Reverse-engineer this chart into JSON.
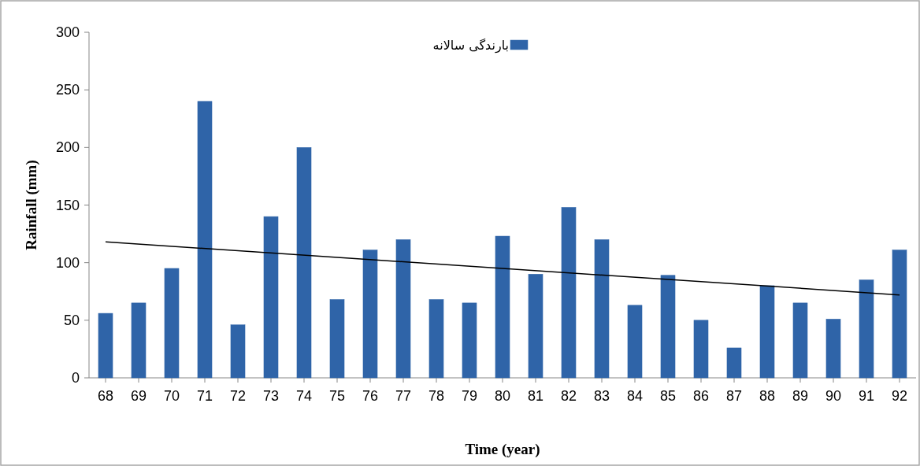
{
  "chart_data": {
    "type": "bar",
    "xlabel": "Time (year)",
    "ylabel": "Rainfall (mm)",
    "x": [
      68,
      69,
      70,
      71,
      72,
      73,
      74,
      75,
      76,
      77,
      78,
      79,
      80,
      81,
      82,
      83,
      84,
      85,
      86,
      87,
      88,
      89,
      90,
      91,
      92
    ],
    "xlim": [
      67.5,
      92.5
    ],
    "xticks": [
      68,
      69,
      70,
      71,
      72,
      73,
      74,
      75,
      76,
      77,
      78,
      79,
      80,
      81,
      82,
      83,
      84,
      85,
      86,
      87,
      88,
      89,
      90,
      91,
      92
    ],
    "ylim": [
      0,
      300
    ],
    "yticks": [
      0,
      50,
      100,
      150,
      200,
      250,
      300
    ],
    "series": [
      {
        "name": "بارندگی سالانه",
        "color": "#2f64a8",
        "values": [
          56,
          65,
          95,
          240,
          46,
          140,
          200,
          68,
          111,
          120,
          68,
          65,
          123,
          90,
          148,
          120,
          63,
          89,
          50,
          26,
          80,
          65,
          51,
          85,
          111
        ]
      },
      {
        "type": "line",
        "color": "#000000",
        "x": [
          68,
          92
        ],
        "values": [
          118,
          72
        ]
      }
    ],
    "legend": "top",
    "grid": false
  }
}
